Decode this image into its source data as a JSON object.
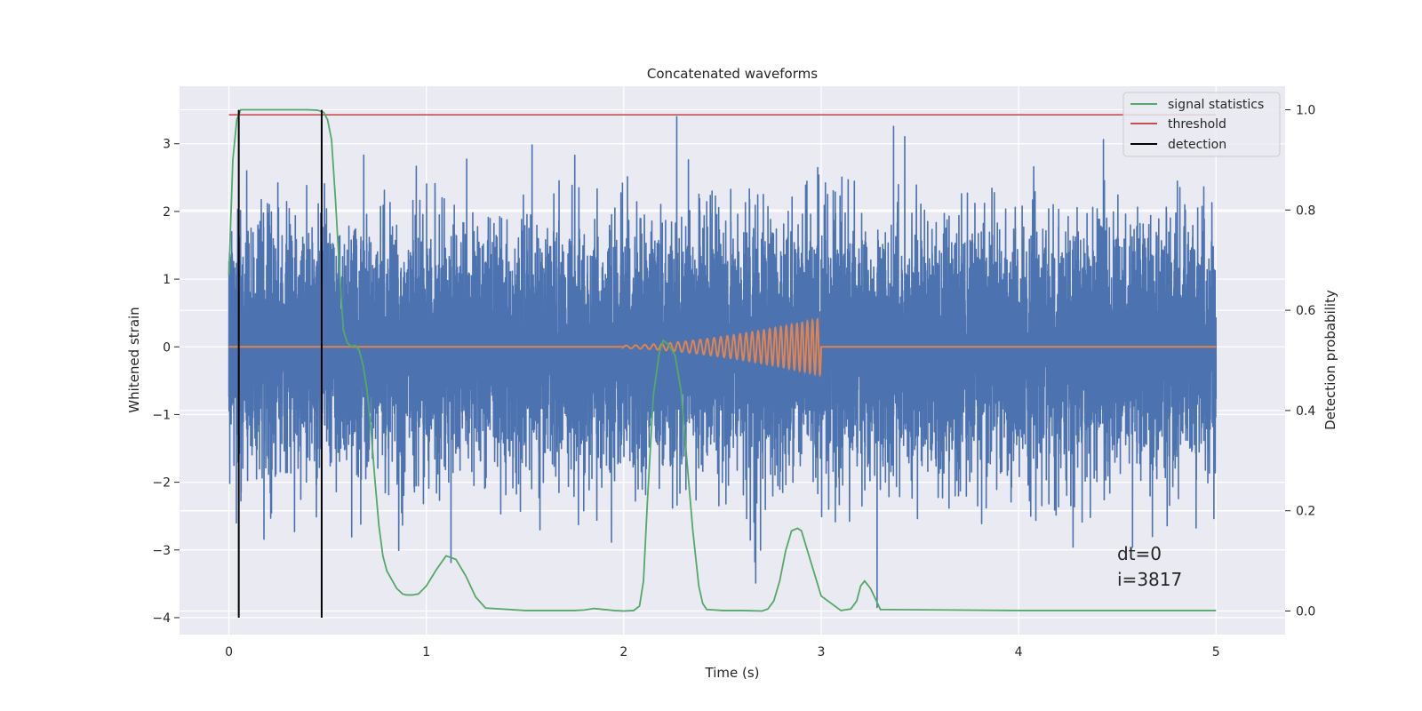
{
  "chart_data": {
    "type": "line",
    "title": "Concatenated waveforms",
    "xlabel": "Time (s)",
    "ylabel": "Whitened strain",
    "y2label": "Detection probability",
    "xlim": [
      -0.25,
      5.35
    ],
    "ylim": [
      -4.25,
      3.85
    ],
    "y2lim": [
      -0.047,
      1.047
    ],
    "x_ticks": [
      0,
      1,
      2,
      3,
      4,
      5
    ],
    "y_ticks": [
      -4,
      -3,
      -2,
      -1,
      0,
      1,
      2,
      3
    ],
    "y2_ticks": [
      0.0,
      0.2,
      0.4,
      0.6,
      0.8,
      1.0
    ],
    "y2_tick_labels": [
      "0.0",
      "0.2",
      "0.4",
      "0.6",
      "0.8",
      "1.0"
    ],
    "grid": true,
    "legend_position": "top-right",
    "legend": [
      {
        "label": "signal statistics",
        "color": "#55a868"
      },
      {
        "label": "threshold",
        "color": "#c44e52"
      },
      {
        "label": "detection",
        "color": "#000000"
      }
    ],
    "colors": {
      "background": "#eaeaf2",
      "strain": "#4c72b0",
      "waveform": "#dd8452",
      "statistics": "#55a868",
      "threshold": "#c44e52",
      "detection": "#000000"
    },
    "strain_noise": {
      "t_start": 0.0,
      "t_end": 5.0,
      "sample_rate": 2048,
      "sigma": 0.9,
      "min": -3.97,
      "max": 3.4,
      "seed": 3817
    },
    "injected_waveform": {
      "t_start": 2.0,
      "t_end": 3.0,
      "f_start": 20,
      "f_end": 40,
      "amp_start": 0.02,
      "amp_end": 0.42
    },
    "threshold": {
      "t": [
        0.0,
        5.0
      ],
      "value": 0.99
    },
    "detections": [
      0.05,
      0.47
    ],
    "detection_y_range": [
      -4.0,
      3.5
    ],
    "signal_statistics": {
      "t": [
        0.0,
        0.02,
        0.04,
        0.06,
        0.08,
        0.1,
        0.2,
        0.3,
        0.4,
        0.45,
        0.48,
        0.5,
        0.52,
        0.54,
        0.56,
        0.58,
        0.6,
        0.62,
        0.64,
        0.66,
        0.68,
        0.7,
        0.72,
        0.74,
        0.76,
        0.78,
        0.8,
        0.85,
        0.88,
        0.9,
        0.93,
        0.96,
        1.0,
        1.05,
        1.1,
        1.15,
        1.2,
        1.25,
        1.3,
        1.5,
        1.75,
        1.8,
        1.85,
        1.9,
        1.95,
        2.0,
        2.05,
        2.08,
        2.1,
        2.12,
        2.15,
        2.18,
        2.2,
        2.23,
        2.26,
        2.29,
        2.32,
        2.35,
        2.38,
        2.4,
        2.42,
        2.5,
        2.6,
        2.7,
        2.73,
        2.76,
        2.79,
        2.82,
        2.85,
        2.88,
        2.9,
        3.0,
        3.1,
        3.15,
        3.18,
        3.2,
        3.22,
        3.25,
        3.3,
        4.0,
        5.0
      ],
      "p": [
        0.67,
        0.9,
        0.98,
        1.0,
        1.0,
        1.0,
        1.0,
        1.0,
        1.0,
        0.999,
        0.995,
        0.98,
        0.94,
        0.82,
        0.68,
        0.56,
        0.535,
        0.528,
        0.53,
        0.52,
        0.49,
        0.44,
        0.36,
        0.26,
        0.17,
        0.11,
        0.08,
        0.045,
        0.034,
        0.032,
        0.032,
        0.034,
        0.05,
        0.082,
        0.11,
        0.103,
        0.07,
        0.028,
        0.006,
        0.001,
        0.001,
        0.002,
        0.005,
        0.003,
        0.001,
        0.0,
        0.001,
        0.01,
        0.06,
        0.22,
        0.43,
        0.515,
        0.54,
        0.53,
        0.51,
        0.44,
        0.3,
        0.16,
        0.05,
        0.015,
        0.003,
        0.001,
        0.001,
        0.0,
        0.004,
        0.02,
        0.06,
        0.12,
        0.16,
        0.165,
        0.16,
        0.03,
        0.001,
        0.004,
        0.02,
        0.05,
        0.06,
        0.045,
        0.003,
        0.001,
        0.001
      ]
    },
    "annotations": [
      "dt=0",
      "i=3817"
    ]
  }
}
